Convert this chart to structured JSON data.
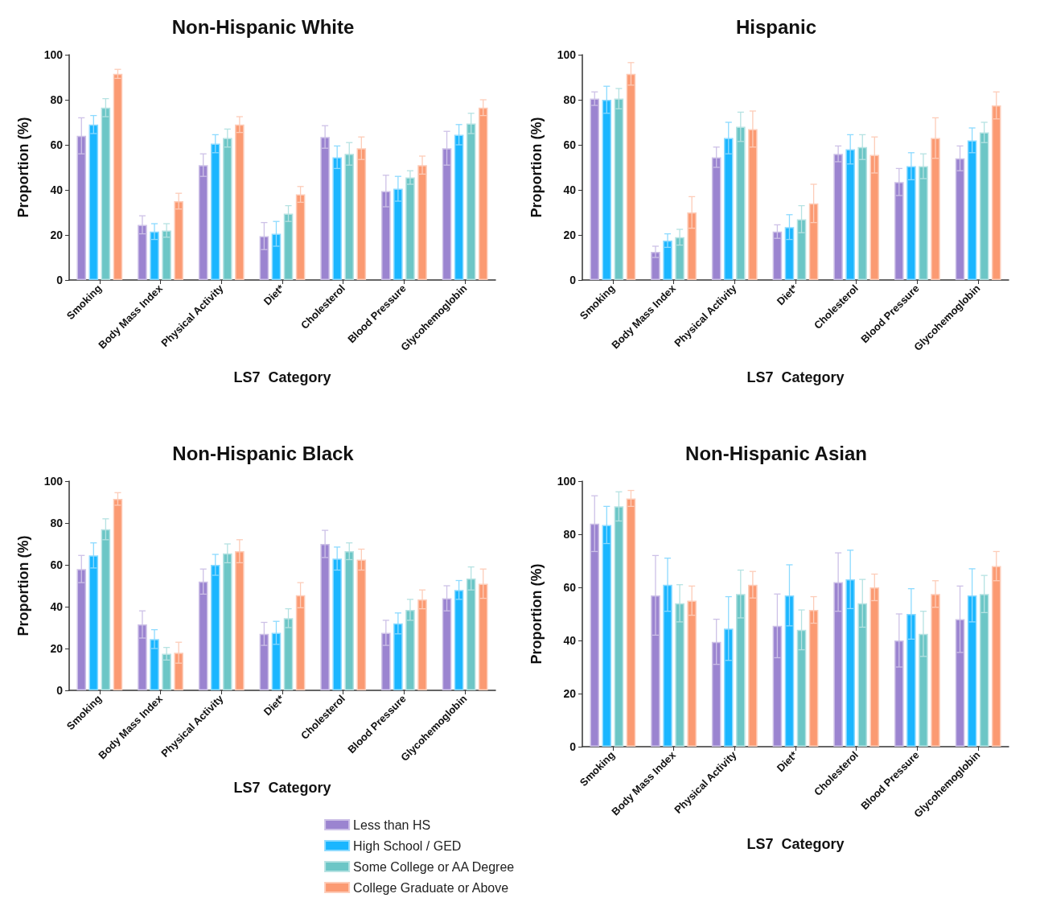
{
  "chart_data": [
    {
      "type": "bar",
      "title": "Non-Hispanic White",
      "xlabel": "LS7  Category",
      "ylabel": "Proportion (%)",
      "categories": [
        "Smoking",
        "Body Mass Index",
        "Physical Activity",
        "Diet*",
        "Cholesterol",
        "Blood Pressure",
        "Glycohemoglobin"
      ],
      "ylim": [
        0,
        100
      ],
      "yticks": [
        0,
        20,
        40,
        60,
        80,
        100
      ],
      "grid": false,
      "legend": false,
      "series": [
        {
          "color": "#9b84d0",
          "values": [
            64,
            24.5,
            51,
            19.5,
            63.5,
            39.5,
            58.5
          ],
          "errors": [
            8,
            4,
            5,
            6,
            5,
            7,
            7.5
          ]
        },
        {
          "color": "#1ab6ff",
          "values": [
            69,
            21.5,
            60.5,
            20.5,
            54.5,
            40.5,
            64.5
          ],
          "errors": [
            4,
            3.5,
            4,
            5.5,
            5,
            5.5,
            4.5
          ]
        },
        {
          "color": "#6cc6c6",
          "values": [
            76.5,
            22,
            63,
            29.5,
            56,
            45.5,
            69.5
          ],
          "errors": [
            4,
            3,
            4,
            3.5,
            5,
            3,
            4.5
          ]
        },
        {
          "color": "#fb9a72",
          "values": [
            91.5,
            35,
            69,
            38,
            58.5,
            51,
            76.5
          ],
          "errors": [
            2,
            3.5,
            3.5,
            3.5,
            5,
            4,
            3.5
          ]
        }
      ]
    },
    {
      "type": "bar",
      "title": "Hispanic",
      "xlabel": "LS7  Category",
      "ylabel": "Proportion (%)",
      "categories": [
        "Smoking",
        "Body Mass Index",
        "Physical Activity",
        "Diet*",
        "Cholesterol",
        "Blood Pressure",
        "Glycohemoglobin"
      ],
      "ylim": [
        0,
        100
      ],
      "yticks": [
        0,
        20,
        40,
        60,
        80,
        100
      ],
      "grid": false,
      "legend": false,
      "series": [
        {
          "color": "#9b84d0",
          "values": [
            80.5,
            12.5,
            54.5,
            21.5,
            56,
            43.5,
            54
          ],
          "errors": [
            3,
            2.5,
            4.5,
            3,
            3.5,
            6,
            5.5
          ]
        },
        {
          "color": "#1ab6ff",
          "values": [
            80,
            17.5,
            63,
            23.5,
            58,
            50.5,
            62
          ],
          "errors": [
            6,
            3,
            7,
            5.5,
            6.5,
            6,
            5.5
          ]
        },
        {
          "color": "#6cc6c6",
          "values": [
            80.5,
            19,
            68,
            27,
            59,
            50.5,
            65.5
          ],
          "errors": [
            4.5,
            3.5,
            6.5,
            6,
            5.5,
            5.5,
            4.5
          ]
        },
        {
          "color": "#fb9a72",
          "values": [
            91.5,
            30,
            67,
            34,
            55.5,
            63,
            77.5
          ],
          "errors": [
            5,
            7,
            8,
            8.5,
            8,
            9,
            6
          ]
        }
      ]
    },
    {
      "type": "bar",
      "title": "Non-Hispanic Black",
      "xlabel": "LS7  Category",
      "ylabel": "Proportion (%)",
      "categories": [
        "Smoking",
        "Body Mass Index",
        "Physical Activity",
        "Diet*",
        "Cholesterol",
        "Blood Pressure",
        "Glycohemoglobin"
      ],
      "ylim": [
        0,
        100
      ],
      "yticks": [
        0,
        20,
        40,
        60,
        80,
        100
      ],
      "grid": false,
      "legend": "bottom right",
      "series": [
        {
          "name": "Less than HS",
          "color": "#9b84d0",
          "values": [
            58,
            31.5,
            52,
            27,
            70,
            27.5,
            44
          ],
          "errors": [
            6.5,
            6.5,
            6,
            5.5,
            6.5,
            6,
            6
          ]
        },
        {
          "name": "High School / GED",
          "color": "#1ab6ff",
          "values": [
            64.5,
            24.5,
            60,
            27.5,
            63,
            32,
            48
          ],
          "errors": [
            6,
            4.5,
            5,
            5.5,
            5.5,
            5,
            4.5
          ]
        },
        {
          "name": "Some College or AA Degree",
          "color": "#6cc6c6",
          "values": [
            77,
            17.5,
            65.5,
            34.5,
            66.5,
            38.5,
            53.5
          ],
          "errors": [
            5,
            3,
            4.5,
            4.5,
            4,
            5,
            5.5
          ]
        },
        {
          "name": "College Graduate or Above",
          "color": "#fb9a72",
          "values": [
            91.5,
            18,
            66.5,
            45.5,
            62.5,
            43.5,
            51
          ],
          "errors": [
            3,
            5,
            5.5,
            6,
            5,
            4.5,
            7
          ]
        }
      ]
    },
    {
      "type": "bar",
      "title": "Non-Hispanic Asian",
      "xlabel": "LS7  Category",
      "ylabel": "Proportion (%)",
      "categories": [
        "Smoking",
        "Body Mass Index",
        "Physical Activity",
        "Diet*",
        "Cholesterol",
        "Blood Pressure",
        "Glycohemoglobin"
      ],
      "ylim": [
        0,
        100
      ],
      "yticks": [
        0,
        20,
        40,
        60,
        80,
        100
      ],
      "grid": false,
      "legend": false,
      "series": [
        {
          "color": "#9b84d0",
          "values": [
            84,
            57,
            39.5,
            45.5,
            62,
            40,
            48
          ],
          "errors": [
            10.5,
            15,
            8.5,
            12,
            11,
            10,
            12.5
          ]
        },
        {
          "color": "#1ab6ff",
          "values": [
            83.5,
            61,
            44.5,
            57,
            63,
            50,
            57
          ],
          "errors": [
            7,
            10,
            12,
            11.5,
            11,
            9.5,
            10
          ]
        },
        {
          "color": "#6cc6c6",
          "values": [
            90.5,
            54,
            57.5,
            44,
            54,
            42.5,
            57.5
          ],
          "errors": [
            5.5,
            7,
            9,
            7.5,
            9,
            8.5,
            7
          ]
        },
        {
          "color": "#fb9a72",
          "values": [
            93.5,
            55,
            61,
            51.5,
            60,
            57.5,
            68
          ],
          "errors": [
            3,
            5.5,
            5,
            5,
            5,
            5,
            5.5
          ]
        }
      ]
    }
  ]
}
